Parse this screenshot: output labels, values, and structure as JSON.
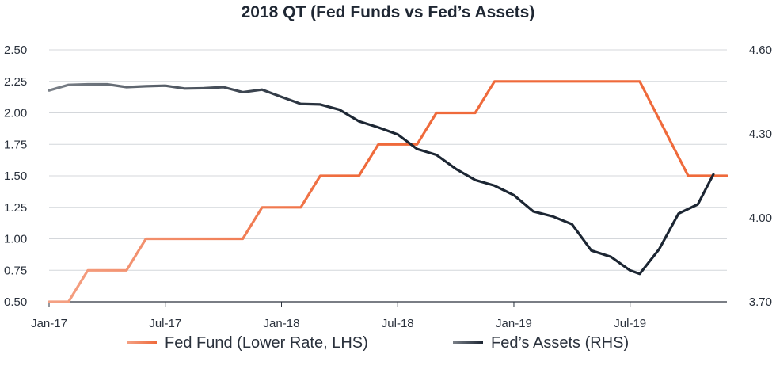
{
  "chart_data": {
    "type": "line",
    "title": "2018 QT (Fed Funds vs Fed’s Assets)",
    "x_tick_labels": [
      "Jan-17",
      "Jul-17",
      "Jan-18",
      "Jul-18",
      "Jan-19",
      "Jul-19"
    ],
    "x_tick_months": [
      0,
      6,
      12,
      18,
      24,
      30
    ],
    "x_range_months": [
      0,
      35
    ],
    "y_left": {
      "ticks": [
        "0.50",
        "0.75",
        "1.00",
        "1.25",
        "1.50",
        "1.75",
        "2.00",
        "2.25",
        "2.50"
      ],
      "range": [
        0.5,
        2.5
      ]
    },
    "y_right": {
      "ticks": [
        "3.70",
        "4.00",
        "4.30",
        "4.60"
      ],
      "range": [
        3.7,
        4.6
      ]
    },
    "grid": "horizontal",
    "legend_position": "bottom",
    "series": [
      {
        "name": "Fed Fund (Lower Rate, LHS)",
        "axis": "left",
        "color": "#ef6a3b",
        "color_start": "#f4a184",
        "points": [
          [
            0.0,
            0.5
          ],
          [
            1.0,
            0.5
          ],
          [
            2.0,
            0.75
          ],
          [
            4.0,
            0.75
          ],
          [
            5.0,
            1.0
          ],
          [
            10.0,
            1.0
          ],
          [
            11.0,
            1.25
          ],
          [
            13.0,
            1.25
          ],
          [
            14.0,
            1.5
          ],
          [
            16.0,
            1.5
          ],
          [
            17.0,
            1.75
          ],
          [
            19.0,
            1.75
          ],
          [
            20.0,
            2.0
          ],
          [
            22.0,
            2.0
          ],
          [
            23.0,
            2.25
          ],
          [
            30.5,
            2.25
          ],
          [
            33.0,
            1.5
          ],
          [
            35.0,
            1.5
          ]
        ]
      },
      {
        "name": "Fed’s Assets (RHS)",
        "axis": "right",
        "color": "#1c2633",
        "color_start": "#7a8088",
        "points": [
          [
            0.0,
            4.455
          ],
          [
            1.0,
            4.475
          ],
          [
            2.0,
            4.477
          ],
          [
            3.0,
            4.477
          ],
          [
            4.0,
            4.467
          ],
          [
            5.0,
            4.47
          ],
          [
            6.0,
            4.472
          ],
          [
            7.0,
            4.462
          ],
          [
            8.0,
            4.463
          ],
          [
            9.0,
            4.467
          ],
          [
            10.0,
            4.449
          ],
          [
            11.0,
            4.458
          ],
          [
            12.0,
            4.432
          ],
          [
            13.0,
            4.407
          ],
          [
            14.0,
            4.405
          ],
          [
            15.0,
            4.386
          ],
          [
            16.0,
            4.345
          ],
          [
            17.0,
            4.323
          ],
          [
            18.0,
            4.298
          ],
          [
            19.0,
            4.246
          ],
          [
            20.0,
            4.225
          ],
          [
            21.0,
            4.175
          ],
          [
            22.0,
            4.135
          ],
          [
            23.0,
            4.115
          ],
          [
            24.0,
            4.081
          ],
          [
            25.0,
            4.023
          ],
          [
            26.0,
            4.005
          ],
          [
            27.0,
            3.977
          ],
          [
            28.0,
            3.883
          ],
          [
            29.0,
            3.861
          ],
          [
            30.0,
            3.812
          ],
          [
            30.5,
            3.8
          ],
          [
            31.5,
            3.888
          ],
          [
            32.5,
            4.015
          ],
          [
            33.5,
            4.048
          ],
          [
            34.3,
            4.155
          ]
        ]
      }
    ]
  }
}
